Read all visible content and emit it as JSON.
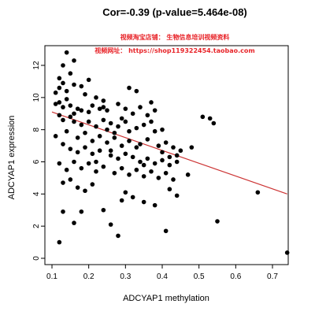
{
  "chart_data": {
    "type": "scatter",
    "title": "Cor=-0.39 (p-value=5.464e-08)",
    "annotations": [
      {
        "text": "视频淘宝店铺：  生物信息培训视频资料",
        "color": "#e8252a"
      },
      {
        "text": "视频网址：  https://shop119322454.taobao.com",
        "color": "#e8252a"
      }
    ],
    "xlabel": "ADCYAP1 methylation",
    "ylabel": "ADCYAP1 expression",
    "xlim": [
      0.1,
      0.75
    ],
    "ylim": [
      0,
      13
    ],
    "xticks": [
      "0.1",
      "0.2",
      "0.3",
      "0.4",
      "0.5",
      "0.6",
      "0.7"
    ],
    "yticks": [
      "0",
      "2",
      "4",
      "6",
      "8",
      "10",
      "12"
    ],
    "grid": false,
    "legend": "none",
    "point_color": "#000000",
    "regression_line": {
      "x": [
        0.1,
        0.74
      ],
      "y": [
        9.1,
        4.0
      ],
      "color": "#cc3333"
    },
    "points": [
      [
        0.14,
        12.8
      ],
      [
        0.13,
        12.0
      ],
      [
        0.16,
        12.3
      ],
      [
        0.12,
        11.2
      ],
      [
        0.15,
        11.5
      ],
      [
        0.13,
        10.9
      ],
      [
        0.12,
        10.6
      ],
      [
        0.11,
        10.3
      ],
      [
        0.14,
        10.4
      ],
      [
        0.16,
        10.8
      ],
      [
        0.18,
        10.7
      ],
      [
        0.2,
        11.1
      ],
      [
        0.19,
        10.2
      ],
      [
        0.14,
        9.9
      ],
      [
        0.12,
        9.7
      ],
      [
        0.11,
        9.6
      ],
      [
        0.13,
        9.4
      ],
      [
        0.15,
        9.5
      ],
      [
        0.17,
        9.3
      ],
      [
        0.18,
        9.2
      ],
      [
        0.21,
        9.5
      ],
      [
        0.23,
        9.3
      ],
      [
        0.24,
        9.8
      ],
      [
        0.22,
        10.0
      ],
      [
        0.25,
        9.2
      ],
      [
        0.28,
        9.6
      ],
      [
        0.3,
        9.3
      ],
      [
        0.32,
        9.0
      ],
      [
        0.34,
        9.4
      ],
      [
        0.37,
        9.7
      ],
      [
        0.36,
        8.9
      ],
      [
        0.38,
        9.2
      ],
      [
        0.31,
        10.6
      ],
      [
        0.33,
        10.4
      ],
      [
        0.12,
        8.9
      ],
      [
        0.13,
        8.6
      ],
      [
        0.15,
        8.8
      ],
      [
        0.16,
        8.5
      ],
      [
        0.18,
        8.3
      ],
      [
        0.2,
        8.5
      ],
      [
        0.22,
        8.2
      ],
      [
        0.24,
        8.6
      ],
      [
        0.26,
        8.4
      ],
      [
        0.28,
        8.2
      ],
      [
        0.3,
        8.5
      ],
      [
        0.33,
        8.1
      ],
      [
        0.35,
        8.3
      ],
      [
        0.38,
        7.9
      ],
      [
        0.4,
        8.0
      ],
      [
        0.11,
        7.6
      ],
      [
        0.14,
        7.9
      ],
      [
        0.17,
        7.5
      ],
      [
        0.19,
        7.8
      ],
      [
        0.21,
        7.3
      ],
      [
        0.23,
        7.6
      ],
      [
        0.25,
        7.2
      ],
      [
        0.27,
        7.5
      ],
      [
        0.29,
        7.0
      ],
      [
        0.31,
        7.3
      ],
      [
        0.34,
        7.1
      ],
      [
        0.36,
        7.4
      ],
      [
        0.39,
        7.0
      ],
      [
        0.41,
        7.2
      ],
      [
        0.43,
        6.9
      ],
      [
        0.45,
        6.7
      ],
      [
        0.13,
        7.1
      ],
      [
        0.15,
        6.8
      ],
      [
        0.17,
        6.6
      ],
      [
        0.19,
        6.9
      ],
      [
        0.21,
        6.5
      ],
      [
        0.23,
        6.7
      ],
      [
        0.26,
        6.4
      ],
      [
        0.28,
        6.2
      ],
      [
        0.3,
        6.5
      ],
      [
        0.32,
        6.3
      ],
      [
        0.34,
        6.0
      ],
      [
        0.36,
        6.2
      ],
      [
        0.38,
        5.9
      ],
      [
        0.4,
        6.1
      ],
      [
        0.42,
        5.8
      ],
      [
        0.44,
        6.0
      ],
      [
        0.48,
        6.9
      ],
      [
        0.51,
        8.8
      ],
      [
        0.53,
        8.7
      ],
      [
        0.54,
        8.4
      ],
      [
        0.16,
        6.0
      ],
      [
        0.18,
        5.6
      ],
      [
        0.2,
        5.9
      ],
      [
        0.22,
        5.4
      ],
      [
        0.24,
        5.7
      ],
      [
        0.27,
        5.3
      ],
      [
        0.29,
        5.6
      ],
      [
        0.31,
        5.2
      ],
      [
        0.33,
        5.5
      ],
      [
        0.35,
        5.1
      ],
      [
        0.37,
        5.4
      ],
      [
        0.39,
        5.0
      ],
      [
        0.41,
        5.3
      ],
      [
        0.43,
        4.9
      ],
      [
        0.12,
        5.9
      ],
      [
        0.14,
        5.5
      ],
      [
        0.13,
        4.7
      ],
      [
        0.15,
        4.9
      ],
      [
        0.17,
        4.4
      ],
      [
        0.19,
        4.2
      ],
      [
        0.21,
        4.6
      ],
      [
        0.3,
        4.1
      ],
      [
        0.32,
        3.8
      ],
      [
        0.35,
        3.5
      ],
      [
        0.38,
        3.3
      ],
      [
        0.29,
        3.6
      ],
      [
        0.42,
        4.3
      ],
      [
        0.44,
        3.9
      ],
      [
        0.47,
        5.2
      ],
      [
        0.13,
        2.9
      ],
      [
        0.18,
        2.9
      ],
      [
        0.24,
        3.0
      ],
      [
        0.26,
        2.1
      ],
      [
        0.16,
        2.2
      ],
      [
        0.28,
        1.4
      ],
      [
        0.12,
        1.0
      ],
      [
        0.41,
        1.7
      ],
      [
        0.55,
        2.3
      ],
      [
        0.66,
        4.1
      ],
      [
        0.74,
        0.35
      ],
      [
        0.26,
        6.7
      ],
      [
        0.22,
        6.0
      ],
      [
        0.33,
        6.9
      ],
      [
        0.35,
        5.8
      ],
      [
        0.25,
        8.0
      ],
      [
        0.27,
        7.8
      ],
      [
        0.29,
        8.7
      ],
      [
        0.31,
        7.9
      ],
      [
        0.2,
        9.1
      ],
      [
        0.16,
        9.0
      ],
      [
        0.24,
        9.4
      ],
      [
        0.37,
        8.5
      ],
      [
        0.4,
        6.6
      ],
      [
        0.42,
        6.3
      ],
      [
        0.44,
        6.4
      ]
    ]
  }
}
